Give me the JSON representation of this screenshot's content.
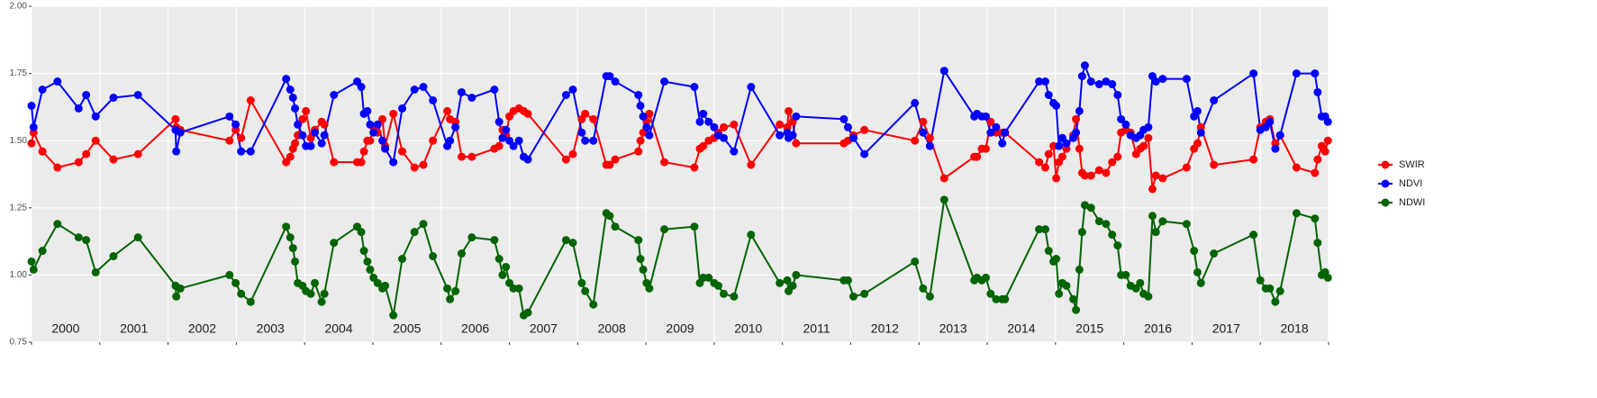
{
  "chart_data": {
    "type": "line",
    "xlim": [
      2000,
      2019
    ],
    "xbreaks": [
      2000,
      2001,
      2002,
      2003,
      2004,
      2005,
      2006,
      2007,
      2008,
      2009,
      2010,
      2011,
      2012,
      2013,
      2014,
      2015,
      2016,
      2017,
      2018,
      2019
    ],
    "year_labels": [
      {
        "value": 2000.5,
        "label": "2000"
      },
      {
        "value": 2001.5,
        "label": "2001"
      },
      {
        "value": 2002.5,
        "label": "2002"
      },
      {
        "value": 2003.5,
        "label": "2003"
      },
      {
        "value": 2004.5,
        "label": "2004"
      },
      {
        "value": 2005.5,
        "label": "2005"
      },
      {
        "value": 2006.5,
        "label": "2006"
      },
      {
        "value": 2007.5,
        "label": "2007"
      },
      {
        "value": 2008.5,
        "label": "2008"
      },
      {
        "value": 2009.5,
        "label": "2009"
      },
      {
        "value": 2010.5,
        "label": "2010"
      },
      {
        "value": 2011.5,
        "label": "2011"
      },
      {
        "value": 2012.5,
        "label": "2012"
      },
      {
        "value": 2013.5,
        "label": "2013"
      },
      {
        "value": 2014.5,
        "label": "2014"
      },
      {
        "value": 2015.5,
        "label": "2015"
      },
      {
        "value": 2016.5,
        "label": "2016"
      },
      {
        "value": 2017.5,
        "label": "2017"
      },
      {
        "value": 2018.5,
        "label": "2018"
      }
    ],
    "ylim": [
      0.75,
      2.0
    ],
    "yticks": [
      0.75,
      {
        "value": 1.0,
        "label": "1.00"
      },
      1.25,
      {
        "value": 1.5,
        "label": "1.50"
      },
      1.75,
      {
        "value": 2.0,
        "label": "2.00"
      }
    ],
    "grid": true,
    "legend": "right",
    "x": [
      2000.0,
      2000.03,
      2000.16,
      2000.38,
      2000.69,
      2000.8,
      2000.94,
      2001.2,
      2001.56,
      2002.11,
      2002.12,
      2002.18,
      2002.9,
      2002.99,
      2003.07,
      2003.21,
      2003.73,
      2003.79,
      2003.83,
      2003.86,
      2003.9,
      2003.97,
      2004.02,
      2004.09,
      2004.15,
      2004.25,
      2004.29,
      2004.43,
      2004.77,
      2004.83,
      2004.87,
      2004.92,
      2004.96,
      2005.01,
      2005.07,
      2005.14,
      2005.18,
      2005.3,
      2005.43,
      2005.61,
      2005.74,
      2005.88,
      2006.09,
      2006.13,
      2006.21,
      2006.3,
      2006.45,
      2006.78,
      2006.85,
      2006.9,
      2006.95,
      2007.0,
      2007.06,
      2007.14,
      2007.21,
      2007.27,
      2007.83,
      2007.93,
      2008.06,
      2008.11,
      2008.23,
      2008.42,
      2008.47,
      2008.55,
      2008.89,
      2008.92,
      2008.96,
      2009.01,
      2009.05,
      2009.27,
      2009.71,
      2009.79,
      2009.84,
      2009.92,
      2010.0,
      2010.06,
      2010.14,
      2010.29,
      2010.54,
      2010.96,
      2011.07,
      2011.09,
      2011.15,
      2011.2,
      2011.9,
      2011.96,
      2012.04,
      2012.2,
      2012.94,
      2013.06,
      2013.16,
      2013.37,
      2013.81,
      2013.85,
      2013.92,
      2013.98,
      2014.05,
      2014.13,
      2014.22,
      2014.26,
      2014.76,
      2014.85,
      2014.9,
      2014.97,
      2015.01,
      2015.05,
      2015.1,
      2015.16,
      2015.26,
      2015.3,
      2015.35,
      2015.39,
      2015.43,
      2015.52,
      2015.64,
      2015.74,
      2015.83,
      2015.91,
      2015.96,
      2016.03,
      2016.1,
      2016.18,
      2016.24,
      2016.29,
      2016.36,
      2016.42,
      2016.47,
      2016.57,
      2016.92,
      2017.03,
      2017.08,
      2017.13,
      2017.32,
      2017.9,
      2018.0,
      2018.08,
      2018.14,
      2018.22,
      2018.29,
      2018.53,
      2018.8,
      2018.84,
      2018.9,
      2018.95,
      2018.99
    ],
    "series": [
      {
        "name": "SWIR",
        "color": "#ff0000",
        "values": [
          1.49,
          1.53,
          1.46,
          1.4,
          1.42,
          1.45,
          1.5,
          1.43,
          1.45,
          1.58,
          1.55,
          1.54,
          1.5,
          1.54,
          1.51,
          1.65,
          1.42,
          1.44,
          1.47,
          1.49,
          1.52,
          1.58,
          1.61,
          1.51,
          1.54,
          1.57,
          1.56,
          1.42,
          1.42,
          1.42,
          1.46,
          1.5,
          1.5,
          1.55,
          1.53,
          1.58,
          1.48,
          1.6,
          1.46,
          1.4,
          1.41,
          1.5,
          1.61,
          1.58,
          1.57,
          1.44,
          1.44,
          1.47,
          1.48,
          1.54,
          1.52,
          1.59,
          1.61,
          1.62,
          1.61,
          1.6,
          1.43,
          1.45,
          1.58,
          1.6,
          1.58,
          1.41,
          1.41,
          1.43,
          1.46,
          1.5,
          1.53,
          1.57,
          1.6,
          1.42,
          1.4,
          1.47,
          1.48,
          1.5,
          1.51,
          1.53,
          1.55,
          1.56,
          1.41,
          1.56,
          1.55,
          1.61,
          1.57,
          1.49,
          1.49,
          1.5,
          1.52,
          1.54,
          1.5,
          1.57,
          1.51,
          1.36,
          1.44,
          1.44,
          1.47,
          1.47,
          1.57,
          1.53,
          1.53,
          1.53,
          1.42,
          1.4,
          1.45,
          1.48,
          1.36,
          1.42,
          1.44,
          1.47,
          1.52,
          1.58,
          1.47,
          1.38,
          1.37,
          1.37,
          1.39,
          1.38,
          1.42,
          1.44,
          1.53,
          1.54,
          1.53,
          1.45,
          1.47,
          1.48,
          1.51,
          1.32,
          1.37,
          1.36,
          1.4,
          1.47,
          1.49,
          1.55,
          1.41,
          1.43,
          1.55,
          1.57,
          1.58,
          1.49,
          1.52,
          1.4,
          1.38,
          1.43,
          1.48,
          1.46,
          1.5
        ]
      },
      {
        "name": "NDVI",
        "color": "#0000ff",
        "values": [
          1.63,
          1.55,
          1.69,
          1.72,
          1.62,
          1.67,
          1.59,
          1.66,
          1.67,
          1.54,
          1.46,
          1.53,
          1.59,
          1.56,
          1.46,
          1.46,
          1.73,
          1.69,
          1.66,
          1.62,
          1.56,
          1.52,
          1.48,
          1.48,
          1.53,
          1.49,
          1.52,
          1.67,
          1.72,
          1.7,
          1.6,
          1.61,
          1.56,
          1.53,
          1.56,
          1.5,
          1.47,
          1.42,
          1.62,
          1.69,
          1.7,
          1.65,
          1.48,
          1.5,
          1.55,
          1.68,
          1.66,
          1.69,
          1.57,
          1.51,
          1.54,
          1.5,
          1.48,
          1.5,
          1.44,
          1.43,
          1.67,
          1.69,
          1.53,
          1.5,
          1.5,
          1.74,
          1.74,
          1.72,
          1.67,
          1.63,
          1.59,
          1.55,
          1.52,
          1.72,
          1.7,
          1.57,
          1.6,
          1.57,
          1.55,
          1.52,
          1.51,
          1.46,
          1.7,
          1.52,
          1.53,
          1.51,
          1.52,
          1.59,
          1.58,
          1.55,
          1.51,
          1.45,
          1.64,
          1.53,
          1.48,
          1.76,
          1.59,
          1.6,
          1.59,
          1.59,
          1.53,
          1.55,
          1.49,
          1.53,
          1.72,
          1.72,
          1.67,
          1.64,
          1.63,
          1.48,
          1.51,
          1.49,
          1.51,
          1.53,
          1.61,
          1.74,
          1.78,
          1.72,
          1.71,
          1.72,
          1.71,
          1.67,
          1.58,
          1.56,
          1.52,
          1.51,
          1.52,
          1.54,
          1.55,
          1.74,
          1.72,
          1.73,
          1.73,
          1.59,
          1.61,
          1.53,
          1.65,
          1.75,
          1.54,
          1.55,
          1.57,
          1.47,
          1.52,
          1.75,
          1.75,
          1.68,
          1.59,
          1.59,
          1.57
        ]
      },
      {
        "name": "NDWI",
        "color": "#006400",
        "values": [
          1.05,
          1.02,
          1.09,
          1.19,
          1.14,
          1.13,
          1.01,
          1.07,
          1.14,
          0.96,
          0.92,
          0.95,
          1.0,
          0.97,
          0.93,
          0.9,
          1.18,
          1.14,
          1.1,
          1.05,
          0.97,
          0.96,
          0.94,
          0.93,
          0.97,
          0.9,
          0.93,
          1.12,
          1.18,
          1.16,
          1.09,
          1.05,
          1.02,
          0.99,
          0.97,
          0.95,
          0.96,
          0.85,
          1.06,
          1.16,
          1.19,
          1.07,
          0.95,
          0.91,
          0.94,
          1.08,
          1.14,
          1.13,
          1.06,
          1.0,
          1.03,
          0.97,
          0.95,
          0.95,
          0.85,
          0.86,
          1.13,
          1.12,
          0.97,
          0.94,
          0.89,
          1.23,
          1.22,
          1.18,
          1.13,
          1.06,
          1.02,
          0.97,
          0.95,
          1.17,
          1.18,
          0.97,
          0.99,
          0.99,
          0.97,
          0.96,
          0.93,
          0.92,
          1.15,
          0.97,
          0.98,
          0.94,
          0.96,
          1.0,
          0.98,
          0.98,
          0.92,
          0.93,
          1.05,
          0.95,
          0.92,
          1.28,
          0.98,
          0.99,
          0.98,
          0.99,
          0.93,
          0.91,
          0.91,
          0.91,
          1.17,
          1.17,
          1.09,
          1.05,
          1.06,
          0.93,
          0.97,
          0.96,
          0.91,
          0.87,
          1.02,
          1.16,
          1.26,
          1.25,
          1.2,
          1.19,
          1.15,
          1.11,
          1.0,
          1.0,
          0.96,
          0.95,
          0.97,
          0.93,
          0.92,
          1.22,
          1.16,
          1.2,
          1.19,
          1.09,
          1.01,
          0.97,
          1.08,
          1.15,
          0.98,
          0.95,
          0.95,
          0.9,
          0.94,
          1.23,
          1.21,
          1.12,
          1.0,
          1.01,
          0.99
        ]
      }
    ]
  }
}
